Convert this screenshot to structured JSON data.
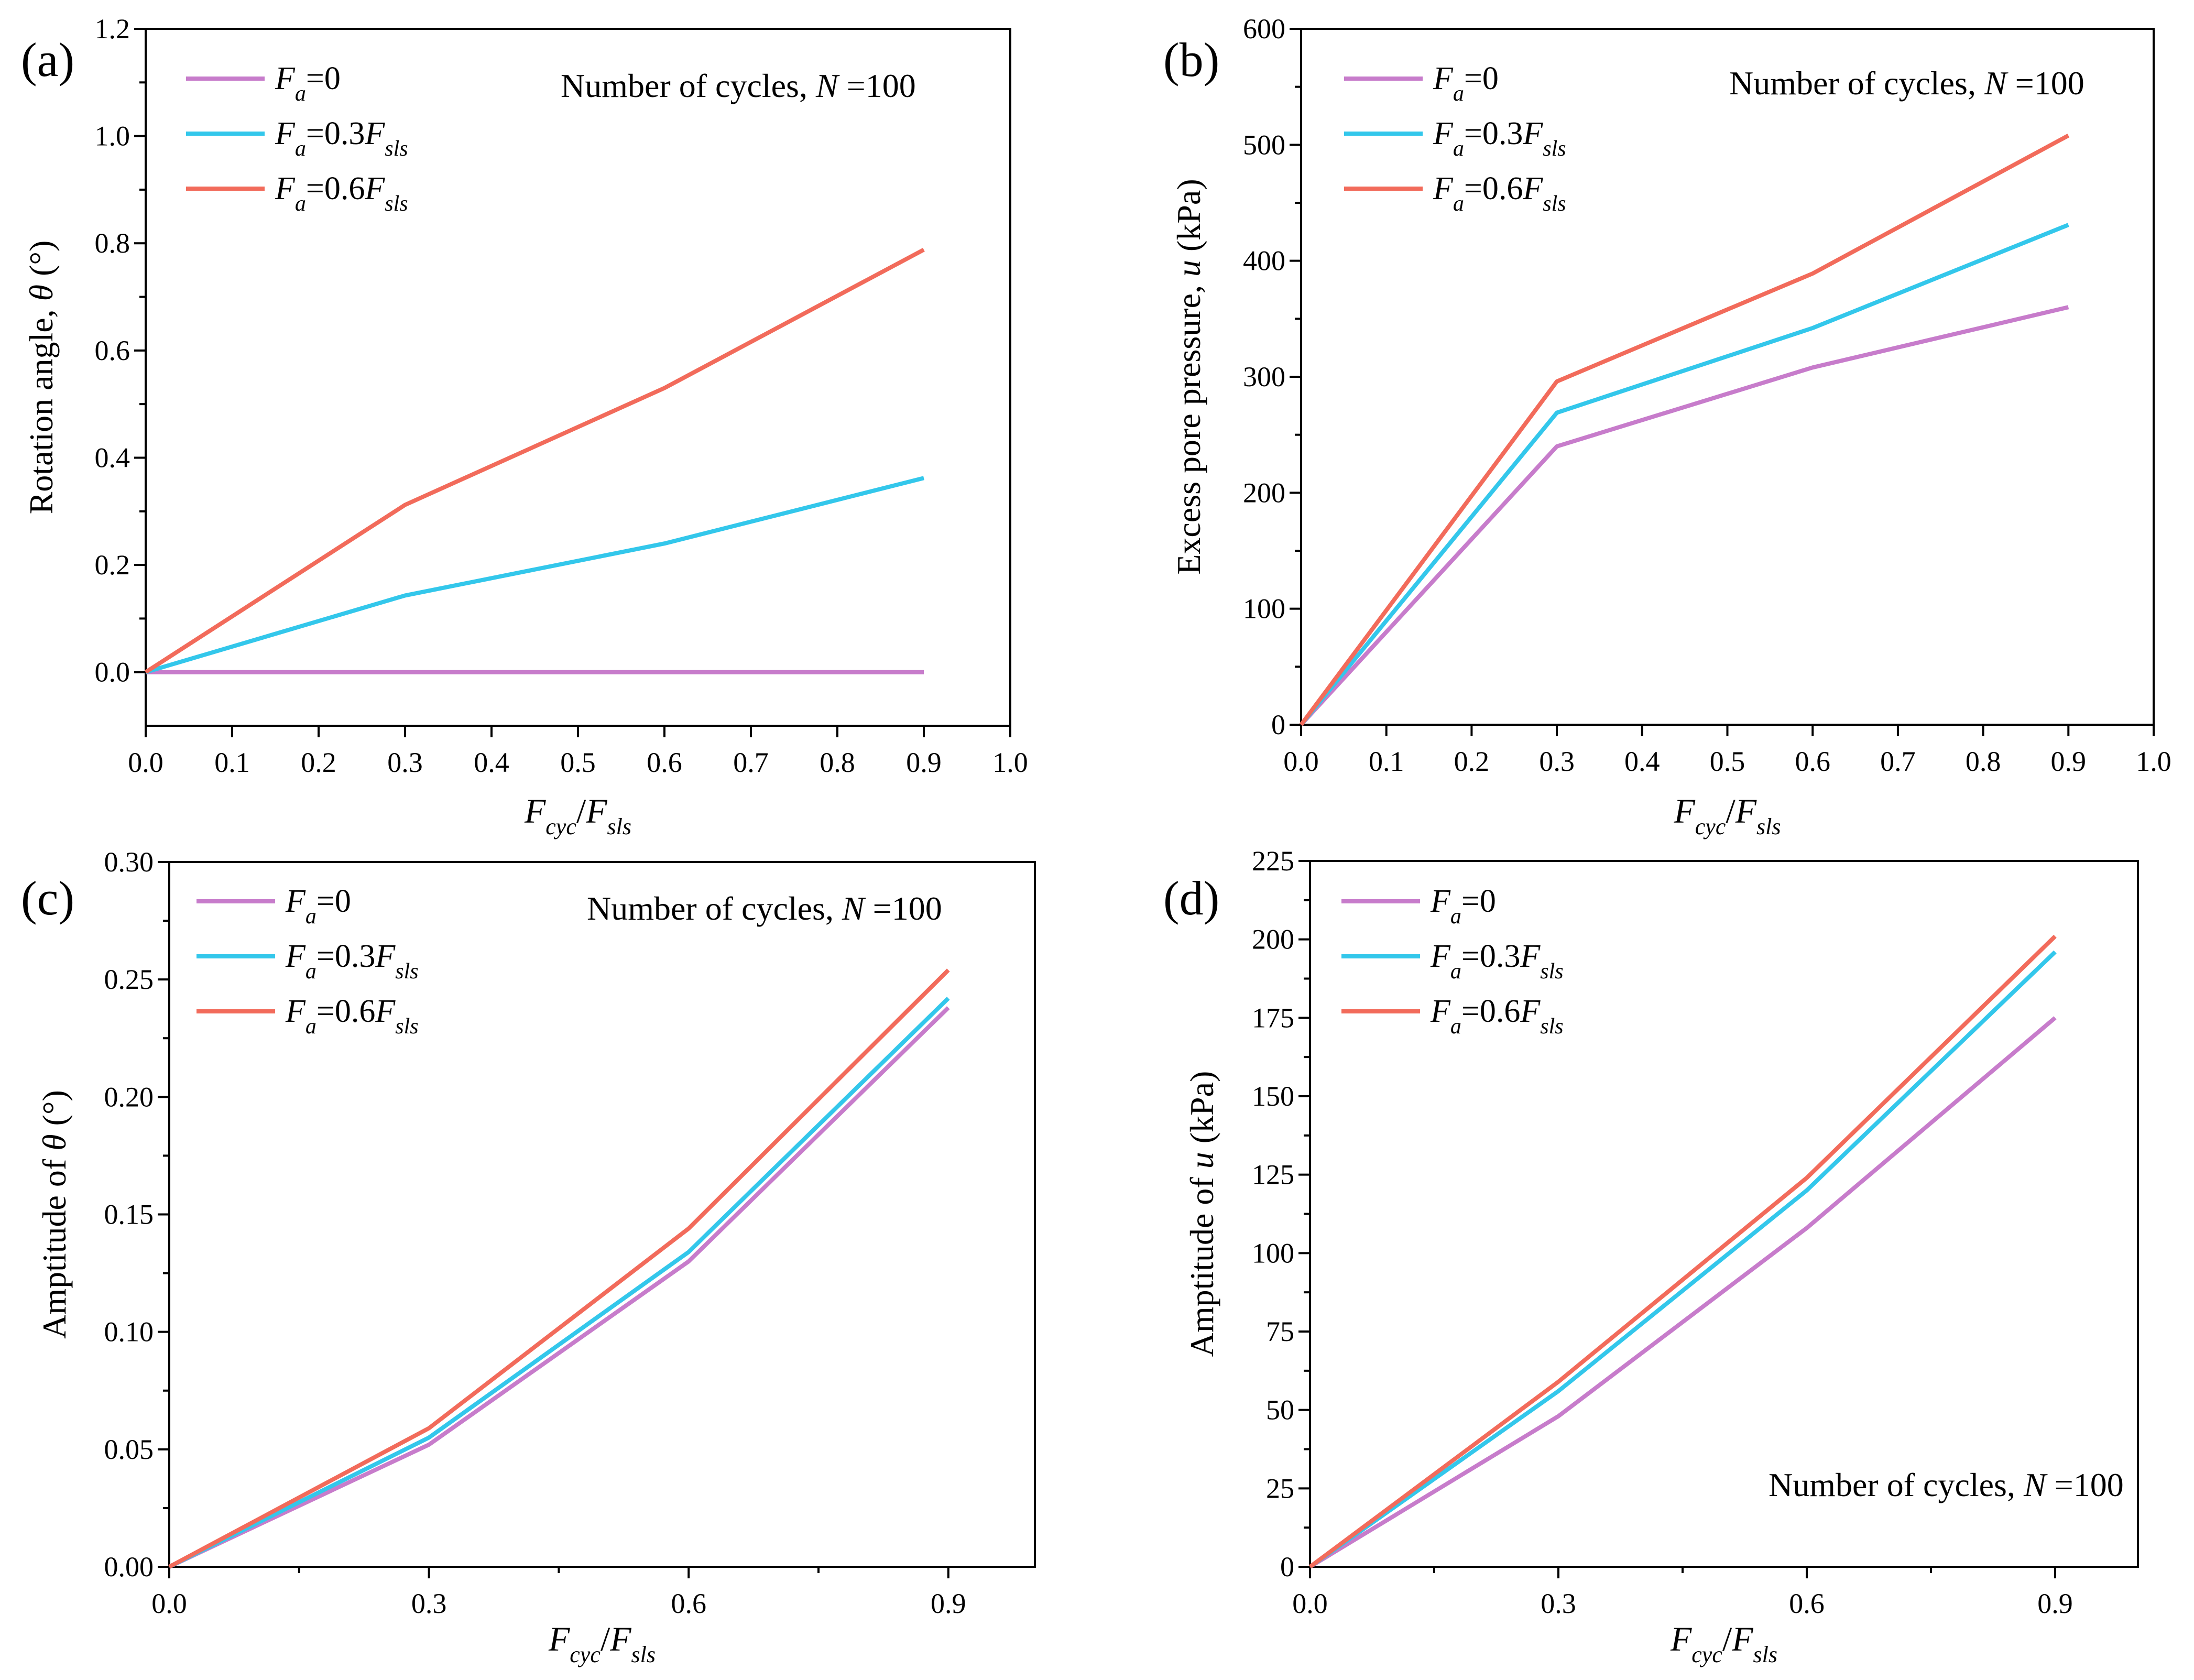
{
  "figure": {
    "colors": {
      "fa0": "#C77CCB",
      "fa03": "#33C7EB",
      "fa06": "#F26B5B",
      "axis": "#000000"
    },
    "legend_labels": [
      {
        "F": "F",
        "sub": "a",
        "rest": "=0",
        "F2": "",
        "sub2": ""
      },
      {
        "F": "F",
        "sub": "a",
        "rest": "=0.3",
        "F2": "F",
        "sub2": "sls"
      },
      {
        "F": "F",
        "sub": "a",
        "rest": "=0.6",
        "F2": "F",
        "sub2": "sls"
      }
    ]
  },
  "chart_data": [
    {
      "panel": "(a)",
      "type": "line",
      "annotation": {
        "text": "Number of cycles, ",
        "var": "N",
        "value": " =100"
      },
      "xlabel": {
        "F1": "F",
        "sub1": "cyc",
        "slash": "/",
        "F2": "F",
        "sub2": "sls"
      },
      "ylabel": {
        "pre": "Rotation angle, ",
        "var": "θ",
        "post": " (°)"
      },
      "xlim": [
        0,
        1.0
      ],
      "ylim": [
        -0.1,
        1.2
      ],
      "xticks": [
        "0.0",
        "0.1",
        "0.2",
        "0.3",
        "0.4",
        "0.5",
        "0.6",
        "0.7",
        "0.8",
        "0.9",
        "1.0"
      ],
      "yticks": [
        "0.0",
        "0.2",
        "0.4",
        "0.6",
        "0.8",
        "1.0",
        "1.2"
      ],
      "x": [
        0,
        0.3,
        0.6,
        0.9
      ],
      "series": [
        {
          "name": "Fa=0",
          "values": [
            0,
            0,
            0,
            0
          ]
        },
        {
          "name": "Fa=0.3Fsls",
          "values": [
            0,
            0.143,
            0.24,
            0.362
          ]
        },
        {
          "name": "Fa=0.6Fsls",
          "values": [
            0,
            0.312,
            0.53,
            0.788
          ]
        }
      ]
    },
    {
      "panel": "(b)",
      "type": "line",
      "annotation": {
        "text": "Number of cycles, ",
        "var": "N",
        "value": " =100"
      },
      "xlabel": {
        "F1": "F",
        "sub1": "cyc",
        "slash": "/",
        "F2": "F",
        "sub2": "sls"
      },
      "ylabel": {
        "pre": "Excess pore pressure, ",
        "var": "u",
        "post": " (kPa)"
      },
      "xlim": [
        0,
        1.0
      ],
      "ylim": [
        0,
        600
      ],
      "xticks": [
        "0.0",
        "0.1",
        "0.2",
        "0.3",
        "0.4",
        "0.5",
        "0.6",
        "0.7",
        "0.8",
        "0.9",
        "1.0"
      ],
      "yticks": [
        "0",
        "100",
        "200",
        "300",
        "400",
        "500",
        "600"
      ],
      "x": [
        0,
        0.3,
        0.6,
        0.9
      ],
      "series": [
        {
          "name": "Fa=0",
          "values": [
            0,
            240,
            308,
            360
          ]
        },
        {
          "name": "Fa=0.3Fsls",
          "values": [
            0,
            269,
            342,
            431
          ]
        },
        {
          "name": "Fa=0.6Fsls",
          "values": [
            0,
            296,
            389,
            508
          ]
        }
      ]
    },
    {
      "panel": "(c)",
      "type": "line",
      "annotation": {
        "text": "Number of cycles, ",
        "var": "N",
        "value": " =100"
      },
      "xlabel": {
        "F1": "F",
        "sub1": "cyc",
        "slash": "/",
        "F2": "F",
        "sub2": "sls"
      },
      "ylabel": {
        "pre": "Amptitude of ",
        "var": "θ",
        "post": " (°)"
      },
      "xlim": [
        0,
        1.0
      ],
      "ylim": [
        0,
        0.3
      ],
      "xticks": [
        "0.0",
        "0.3",
        "0.6",
        "0.9"
      ],
      "xminor": [
        0.15,
        0.45,
        0.75
      ],
      "yticks": [
        "0.00",
        "0.05",
        "0.10",
        "0.15",
        "0.20",
        "0.25",
        "0.30"
      ],
      "x": [
        0,
        0.3,
        0.6,
        0.9
      ],
      "series": [
        {
          "name": "Fa=0",
          "values": [
            0,
            0.052,
            0.13,
            0.238
          ]
        },
        {
          "name": "Fa=0.3Fsls",
          "values": [
            0,
            0.055,
            0.134,
            0.242
          ]
        },
        {
          "name": "Fa=0.6Fsls",
          "values": [
            0,
            0.059,
            0.144,
            0.254
          ]
        }
      ]
    },
    {
      "panel": "(d)",
      "type": "line",
      "annotation": {
        "text": "Number of cycles, ",
        "var": "N",
        "value": " =100"
      },
      "xlabel": {
        "F1": "F",
        "sub1": "cyc",
        "slash": "/",
        "F2": "F",
        "sub2": "sls"
      },
      "ylabel": {
        "pre": "Amptitude of ",
        "var": "u",
        "post": " (kPa)"
      },
      "xlim": [
        0,
        1.0
      ],
      "ylim": [
        0,
        225
      ],
      "xticks": [
        "0.0",
        "0.3",
        "0.6",
        "0.9"
      ],
      "xminor": [
        0.15,
        0.45,
        0.75
      ],
      "yticks": [
        "0",
        "25",
        "50",
        "75",
        "100",
        "125",
        "150",
        "175",
        "200",
        "225"
      ],
      "x": [
        0,
        0.3,
        0.6,
        0.9
      ],
      "series": [
        {
          "name": "Fa=0",
          "values": [
            0,
            48,
            108,
            175
          ]
        },
        {
          "name": "Fa=0.3Fsls",
          "values": [
            0,
            56,
            120,
            196
          ]
        },
        {
          "name": "Fa=0.6Fsls",
          "values": [
            0,
            59,
            124,
            201
          ]
        }
      ]
    }
  ]
}
